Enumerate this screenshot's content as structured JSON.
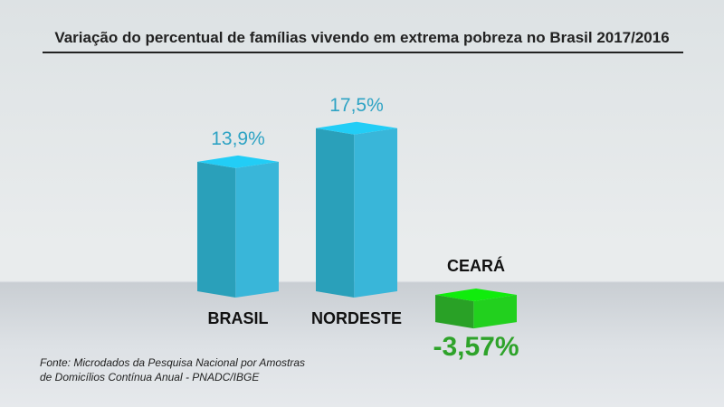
{
  "chart_data": {
    "type": "bar",
    "title": "Variação do percentual de famílias vivendo em extrema pobreza no Brasil 2017/2016",
    "categories": [
      "BRASIL",
      "NORDESTE",
      "CEARÁ"
    ],
    "values": [
      13.9,
      17.5,
      -3.57
    ],
    "value_labels": [
      "13,9%",
      "17,5%",
      "-3,57%"
    ],
    "xlabel": "",
    "ylabel": "",
    "colors": {
      "positive": "#38b4d8",
      "negative": "#2fb52a",
      "positive_label": "#2ea3c4",
      "negative_label": "#2ea32a"
    }
  },
  "source_lines": [
    "Fonte: Microdados da Pesquisa Nacional por Amostras",
    "de Domicílios Contínua Anual - PNADC/IBGE"
  ]
}
